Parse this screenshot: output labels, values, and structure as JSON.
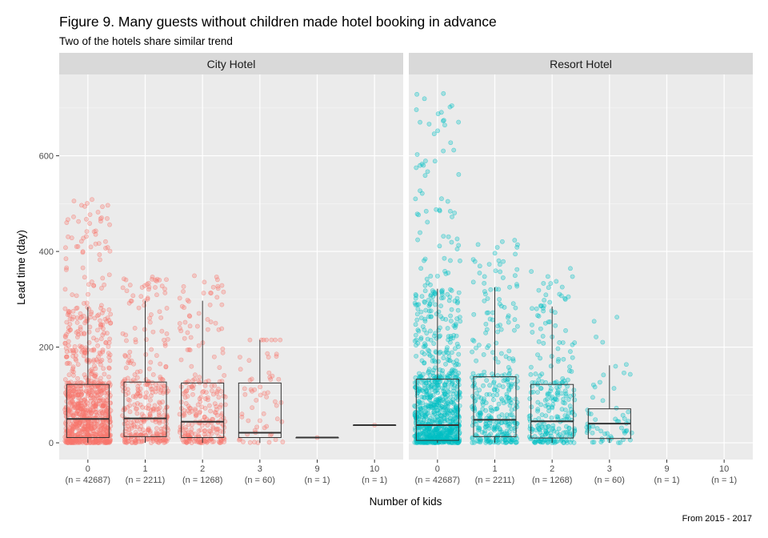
{
  "chart_data": {
    "type": "boxplot",
    "title": "Figure 9. Many guests without children made hotel booking in advance",
    "subtitle": "Two of the hotels share similar trend",
    "xlabel": "Number of kids",
    "ylabel": "Lead time (day)",
    "caption": "From 2015 - 2017",
    "ylim": [
      -35,
      770
    ],
    "y_ticks": [
      0,
      200,
      400,
      600
    ],
    "grid": true,
    "categories": [
      "0",
      "1",
      "2",
      "3",
      "9",
      "10"
    ],
    "panels": [
      {
        "name": "City Hotel",
        "color": "#F8766D",
        "groups": [
          {
            "kids": "0",
            "count_label": "(n = 42687)",
            "min": 0,
            "q1": 11,
            "median": 50,
            "q3": 122,
            "max": 284,
            "outlier_max": 518,
            "n_points": 900
          },
          {
            "kids": "1",
            "count_label": "(n = 2211)",
            "min": 0,
            "q1": 13,
            "median": 51,
            "q3": 127,
            "max": 297,
            "outlier_max": 350,
            "n_points": 330
          },
          {
            "kids": "2",
            "count_label": "(n = 1268)",
            "min": 0,
            "q1": 11,
            "median": 44,
            "q3": 125,
            "max": 297,
            "outlier_max": 350,
            "n_points": 260
          },
          {
            "kids": "3",
            "count_label": "(n = 60)",
            "min": 0,
            "q1": 11,
            "median": 21,
            "q3": 125,
            "max": 215,
            "outlier_max": 215,
            "n_points": 60
          },
          {
            "kids": "9",
            "count_label": "(n = 1)",
            "min": 11,
            "q1": 11,
            "median": 11,
            "q3": 11,
            "max": 11,
            "outlier_max": 11,
            "n_points": 1
          },
          {
            "kids": "10",
            "count_label": "(n = 1)",
            "min": 37,
            "q1": 37,
            "median": 37,
            "q3": 37,
            "max": 37,
            "outlier_max": 37,
            "n_points": 1
          }
        ]
      },
      {
        "name": "Resort Hotel",
        "color": "#00BFC4",
        "groups": [
          {
            "kids": "0",
            "count_label": "(n = 42687)",
            "min": 0,
            "q1": 5,
            "median": 37,
            "q3": 133,
            "max": 322,
            "outlier_max": 737,
            "n_points": 900
          },
          {
            "kids": "1",
            "count_label": "(n = 2211)",
            "min": 0,
            "q1": 13,
            "median": 48,
            "q3": 138,
            "max": 325,
            "outlier_max": 425,
            "n_points": 330
          },
          {
            "kids": "2",
            "count_label": "(n = 1268)",
            "min": 0,
            "q1": 10,
            "median": 45,
            "q3": 122,
            "max": 285,
            "outlier_max": 365,
            "n_points": 260
          },
          {
            "kids": "3",
            "count_label": "(n = 60)",
            "min": 0,
            "q1": 9,
            "median": 40,
            "q3": 71,
            "max": 162,
            "outlier_max": 285,
            "n_points": 60
          },
          {
            "kids": "9",
            "count_label": "(n = 1)",
            "min": null,
            "q1": null,
            "median": null,
            "q3": null,
            "max": null,
            "outlier_max": null,
            "n_points": 0
          },
          {
            "kids": "10",
            "count_label": "(n = 1)",
            "min": null,
            "q1": null,
            "median": null,
            "q3": null,
            "max": null,
            "outlier_max": null,
            "n_points": 0
          }
        ]
      }
    ]
  }
}
